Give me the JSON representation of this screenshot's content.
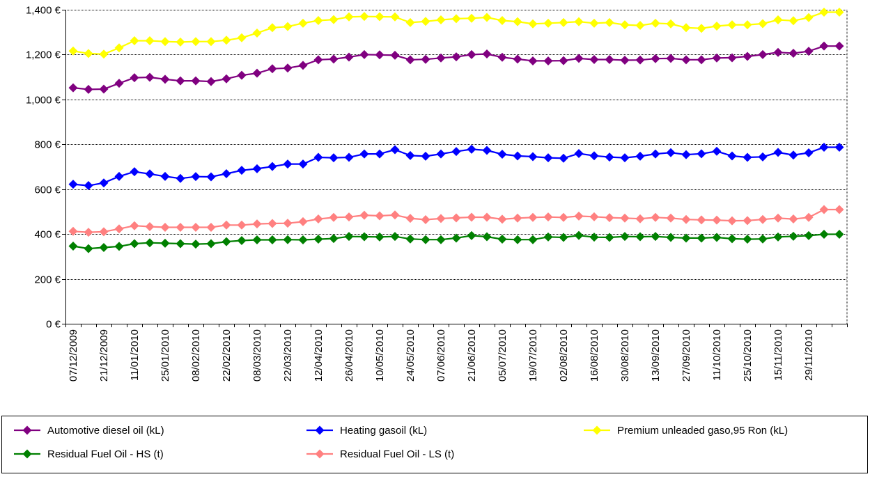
{
  "chart_data": {
    "type": "line",
    "title": "",
    "xlabel": "",
    "ylabel": "",
    "ylim": [
      0,
      1400
    ],
    "y_ticks": [
      0,
      200,
      400,
      600,
      800,
      1000,
      1200,
      1400
    ],
    "y_tick_labels": [
      "0 €",
      "200 €",
      "400 €",
      "600 €",
      "800 €",
      "1,000 €",
      "1,200 €",
      "1,400 €"
    ],
    "grid": "horizontal dotted",
    "legend_position": "bottom",
    "x_tick_labels": [
      "07/12/2009",
      "21/12/2009",
      "11/01/2010",
      "25/01/2010",
      "08/02/2010",
      "22/02/2010",
      "08/03/2010",
      "22/03/2010",
      "12/04/2010",
      "26/04/2010",
      "10/05/2010",
      "24/05/2010",
      "07/06/2010",
      "21/06/2010",
      "05/07/2010",
      "19/07/2010",
      "02/08/2010",
      "16/08/2010",
      "30/08/2010",
      "13/09/2010",
      "27/09/2010",
      "11/10/2010",
      "25/10/2010",
      "15/11/2010",
      "29/11/2010"
    ],
    "x_tick_label_every": 2,
    "n_points": 51,
    "series": [
      {
        "name": "Automotive diesel oil (kL)",
        "color": "#800080",
        "values": [
          1052,
          1045,
          1046,
          1072,
          1097,
          1099,
          1090,
          1083,
          1083,
          1080,
          1092,
          1108,
          1117,
          1137,
          1140,
          1152,
          1177,
          1180,
          1189,
          1200,
          1199,
          1197,
          1177,
          1179,
          1185,
          1190,
          1200,
          1203,
          1188,
          1180,
          1172,
          1172,
          1173,
          1183,
          1178,
          1178,
          1175,
          1176,
          1182,
          1183,
          1177,
          1177,
          1185,
          1186,
          1192,
          1200,
          1210,
          1206,
          1215,
          1238,
          1238
        ]
      },
      {
        "name": "Heating gasoil (kL)",
        "color": "#0000ff",
        "values": [
          622,
          616,
          628,
          657,
          678,
          668,
          657,
          648,
          656,
          655,
          669,
          684,
          691,
          701,
          712,
          712,
          742,
          740,
          742,
          757,
          757,
          776,
          750,
          747,
          757,
          768,
          778,
          773,
          756,
          748,
          745,
          740,
          738,
          759,
          749,
          743,
          740,
          747,
          757,
          763,
          754,
          758,
          769,
          748,
          742,
          744,
          764,
          752,
          762,
          787,
          787
        ]
      },
      {
        "name": "Premium unleaded gaso,95 Ron (kL)",
        "color": "#ffff00",
        "values": [
          1216,
          1205,
          1202,
          1230,
          1262,
          1262,
          1258,
          1256,
          1258,
          1258,
          1264,
          1275,
          1296,
          1320,
          1325,
          1340,
          1352,
          1356,
          1368,
          1370,
          1369,
          1368,
          1343,
          1348,
          1355,
          1360,
          1362,
          1366,
          1352,
          1347,
          1337,
          1340,
          1343,
          1347,
          1340,
          1343,
          1333,
          1330,
          1340,
          1337,
          1320,
          1317,
          1327,
          1333,
          1333,
          1338,
          1355,
          1351,
          1365,
          1389,
          1389
        ]
      },
      {
        "name": "Residual Fuel Oil - HS (t)",
        "color": "#008000",
        "values": [
          346,
          335,
          340,
          345,
          357,
          361,
          359,
          357,
          355,
          357,
          366,
          371,
          374,
          374,
          375,
          374,
          377,
          380,
          389,
          388,
          387,
          389,
          378,
          375,
          375,
          382,
          393,
          388,
          377,
          375,
          375,
          387,
          385,
          394,
          386,
          385,
          389,
          388,
          389,
          385,
          382,
          382,
          385,
          379,
          377,
          378,
          387,
          390,
          393,
          399,
          399
        ]
      },
      {
        "name": "Residual Fuel Oil - LS (t)",
        "color": "#ff8080",
        "values": [
          412,
          408,
          410,
          423,
          437,
          433,
          430,
          430,
          430,
          430,
          440,
          440,
          445,
          447,
          448,
          455,
          467,
          474,
          476,
          484,
          481,
          485,
          470,
          464,
          469,
          472,
          475,
          475,
          466,
          471,
          474,
          476,
          474,
          480,
          477,
          473,
          471,
          468,
          474,
          471,
          465,
          463,
          462,
          459,
          460,
          465,
          471,
          467,
          474,
          509,
          509
        ]
      }
    ]
  }
}
